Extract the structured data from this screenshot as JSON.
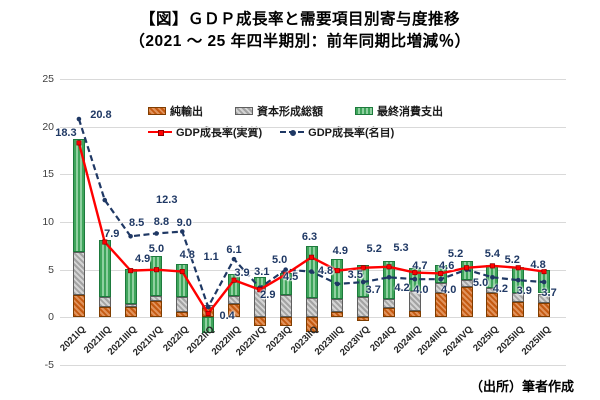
{
  "title": {
    "line1": "【図】ＧＤＰ成長率と需要項目別寄与度推移",
    "line2": "（2021 ～ 25 年四半期別：前年同期比増減％）"
  },
  "source": "（出所）筆者作成",
  "colors": {
    "net_exports": "#C55A11",
    "capital_formation": "#A6A6A6",
    "consumption": "#3FA55B",
    "real_line": "#FF0000",
    "nominal_line": "#1F3864",
    "gridline": "#D9D9D9",
    "data_label": "#1F3864"
  },
  "chart_data": {
    "type": "combo-stacked-bar-line",
    "categories": [
      "2021IQ",
      "2021IIQ",
      "2021IIIQ",
      "2021IVQ",
      "2022IQ",
      "2022IIQ",
      "2022IIIQ",
      "2022IVQ",
      "2023IQ",
      "2023IIQ",
      "2023IIIQ",
      "2023IVQ",
      "2024IQ",
      "2024IIQ",
      "2024IIIQ",
      "2024IVQ",
      "2025IQ",
      "2025IIQ",
      "2025IIIQ"
    ],
    "series": [
      {
        "name": "純輸出",
        "type": "bar-stacked",
        "color": "#C55A11",
        "values": [
          2.3,
          1.1,
          1.1,
          1.7,
          0.6,
          1.0,
          1.4,
          -0.9,
          -0.9,
          -1.5,
          0.6,
          -0.4,
          1.0,
          0.7,
          2.6,
          3.2,
          2.6,
          1.6,
          1.5
        ],
        "note": "estimated from bar heights (unlabeled)"
      },
      {
        "name": "資本形成総額",
        "type": "bar-stacked",
        "color": "#A6A6A6",
        "values": [
          4.6,
          1.0,
          0.3,
          0.5,
          1.5,
          0.3,
          0.8,
          3.1,
          2.3,
          2.0,
          1.3,
          2.1,
          0.9,
          2.1,
          1.0,
          0.7,
          0.5,
          1.0,
          1.0
        ],
        "note": "estimated from bar heights (unlabeled)"
      },
      {
        "name": "最終消費支出",
        "type": "bar-stacked",
        "color": "#3FA55B",
        "values": [
          11.8,
          6.0,
          3.7,
          4.2,
          3.5,
          -1.6,
          2.3,
          1.1,
          2.4,
          5.5,
          4.2,
          3.4,
          4.0,
          2.4,
          1.9,
          2.0,
          2.4,
          2.7,
          2.5
        ],
        "note": "estimated from bar heights (unlabeled)"
      },
      {
        "name": "GDP成長率(実質)",
        "type": "line",
        "color": "#FF0000",
        "values": [
          18.3,
          7.9,
          4.9,
          5.0,
          4.8,
          0.4,
          3.9,
          2.9,
          4.5,
          6.3,
          4.9,
          5.2,
          5.3,
          4.7,
          4.6,
          5.2,
          5.4,
          5.2,
          4.8
        ]
      },
      {
        "name": "GDP成長率(名目)",
        "type": "line-dashed",
        "color": "#1F3864",
        "values": [
          20.8,
          12.3,
          8.5,
          8.8,
          9.0,
          1.1,
          6.1,
          3.1,
          5.0,
          4.8,
          3.5,
          3.7,
          4.2,
          4.0,
          4.0,
          5.0,
          4.2,
          3.9,
          3.7
        ]
      }
    ],
    "ylim": [
      -5,
      25
    ],
    "yticks": [
      -5,
      0,
      5,
      10,
      15,
      20,
      25
    ],
    "grid": true,
    "legend_position": "top-inside",
    "xlabel": "",
    "ylabel": ""
  }
}
